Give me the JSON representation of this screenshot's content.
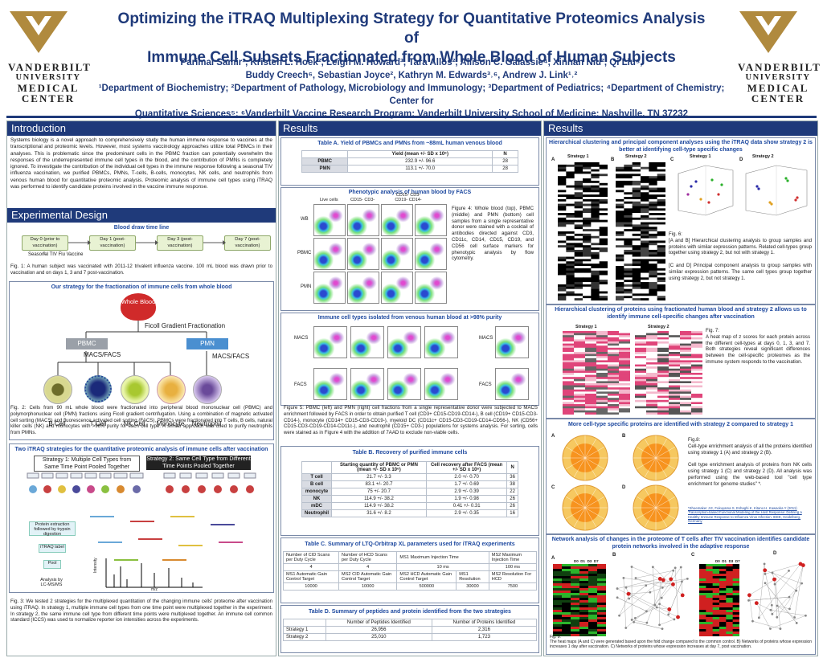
{
  "header": {
    "title_line1": "Optimizing the iTRAQ Multiplexing Strategy for Quantitative Proteomics Analysis of",
    "title_line2": "Immune Cell Subsets Fractionated from Whole Blood of Human Subjects",
    "authors_line1": "Parimal Samir¹, Kristen L. Hoek², Leigh M. Howard³, Tara Allos², Allison C. Galassie⁴, Xinnan Niu², Qi Liu⁵,",
    "authors_line2": "Buddy Creech⁶, Sebastian Joyce², Kathryn M. Edwards³˒⁶, Andrew J. Link¹˒²",
    "affil_line1": "¹Department of Biochemistry; ²Department of Pathology, Microbiology and Immunology; ³Department of Pediatrics; ⁴Department of Chemistry; Center for",
    "affil_line2": "Quantitative Sciences⁵; ⁶Vanderbilt Vaccine Research Program;  Vanderbilt University School of Medicine; Nashville, TN 37232",
    "logo_line1": "VANDERBILT",
    "logo_line2": "UNIVERSITY",
    "logo_line3": "MEDICAL",
    "logo_line4": "CENTER"
  },
  "col1": {
    "intro_head": "Introduction",
    "intro_text": "Systems biology is a novel approach to comprehensively study the human immune response to vaccines at the transcriptional and proteomic levels.  However, most systems vaccinology approaches utilize total PBMCs in their analyses. This is problematic since the predominant cells in the PBMC fraction can potentially overwhelm the responses of the underrepresented immune cell types in the blood, and the contribution of PMNs is completely ignored. To investigate the contribution of the individual cell types in the immune response following a seasonal TIV influenza vaccination, we purified PBMCs, PMNs, T-cells, B-cells, monocytes, NK cells, and neutrophils from venous human blood for quantitative proteomic analysis. Proteomic analysis of immune cell types using iTRAQ was performed to identify candidate proteins involved in the vaccine immune response.",
    "exp_head": "Experimental Design",
    "blood_draw": "Blood draw time line",
    "timeline": [
      "Day 0 (prior to vaccination)",
      "Day 1 (post-vaccination)",
      "Day 3 (post-vaccination)",
      "Day 7 (post-vaccination)"
    ],
    "tiv": "Seasonal TIV Flu Vaccine",
    "fig1": "Fig. 1:  A human subject was vaccinated with 2011-12 trivalent influenza vaccine. 100 mL blood was drawn prior to vaccination and on days 1, 3 and 7 post-vaccination.",
    "strategy_title": "Our strategy for the fractionation of immune cells from whole blood",
    "whole_blood": "Whole Blood",
    "ficoll": "Ficoll Gradient Fractionation",
    "pbmc": "PBMC",
    "pmn": "PMN",
    "macs1": "MACS/FACS",
    "macs2": "MACS/FACS",
    "cells": [
      "B Cell",
      "T Cell",
      "NK Cell",
      "Monocyte",
      "Neutrophil"
    ],
    "fig2": "Fig. 2: Cells from 90 mL whole blood were fractionated into peripheral blood mononuclear cell (PBMC) and polymorphonuclear cell (PMN) fractions using Ficoll gradient centrifugation. Using a combination of magnetic activated cell sorting (MACS) and fluorescence activated cell sorting (FACS), PBMCs were fractionated into T cells, B cells, natural killer cells (NK) and monocytes with >98% purity for each cell type. A similar approach was used to purify neutrophils from PMNs.",
    "itraq_title": "Two iTRAQ strategies for the quantitative proteomic analysis of immune cells after vaccination",
    "strategy1": "Strategy 1: Multiple Cell Types from Same Time Point Pooled Together",
    "strategy2": "Strategy 2: Same Cell Type from Different Time Points Pooled Together",
    "flow_steps": [
      "Protein extraction followed by trypsin digestion",
      "iTRAQ label",
      "Pool",
      "Analysis by LC-MS/MS"
    ],
    "intensity": "Intensity",
    "mz": "m/z",
    "fig3": "Fig. 3: We tested 2 strategies for the multiplexed quantitation of the changing immune cells' proteome after vaccination using iTRAQ. In strategy 1, multiple immune cell types from one time point were multiplexed together in the experiment. In strategy 2, the same immune cell type from different time points were multiplexed together. An immune cell common standard (ICCS) was used to normalize reporter ion intensities across the experiments."
  },
  "col2": {
    "head": "Results",
    "tableA_title": "Table A. Yield of PBMCs and PMNs from ~88mL human venous blood",
    "tableA_cols": [
      "",
      "Yield  (mean +/- SD x 10⁶)",
      "N"
    ],
    "tableA_rows": [
      [
        "PBMC",
        "232.9 +/- 96.6",
        "28"
      ],
      [
        "PMN",
        "113.1 +/- 70.0",
        "28"
      ]
    ],
    "facs_title": "Phenotypic analysis of human blood by FACS",
    "facs_cols": [
      "Live cells",
      "CD15- CD3-",
      "CD15- CD3- CD19- CD14-"
    ],
    "facs_rows": [
      "WB",
      "PBMC",
      "PMN"
    ],
    "fig4": "Figure 4: Whole blood (top), PBMC (middle) and PMN (bottom) cell samples from a single representative donor were stained with a cocktail of antibodies directed against CD3, CD11c, CD14, CD15, CD19, and CD56 cell surface markers for phenotypic analysis by flow cytometry.",
    "iso_title": "Immune cell types isolated from venous human blood at >98% purity",
    "iso_cols": [
      "T cell",
      "B cell",
      "Monocyte",
      "mDC NK",
      "neutrophil"
    ],
    "macs": "MACS",
    "facs": "FACS",
    "fig5": "Figure 5: PBMC (left) and PMN (right) cell fractions from a single representative donor were subjected to MACS enrichment followed by FACS in order to obtain purified T cell (CD3+ CD15-CD19-CD14-), B cell (CD19+ CD15-CD3-CD14-), monocyte (CD14+ CD15-CD3-CD19-), myeloid DC (CD11c+ CD15-CD3-CD19-CD14-CD56-), NK (CD56+ CD15-CD3-CD19-CD14-CD11c-), and neutrophil (CD15+ CD3-) populations for systems analysis. For sorting, cells were stained as in Figure 4 with the addition of 7AAD to exclude  non-viable cells.",
    "tableB_title": "Table B.  Recovery of purified immune cells",
    "tableB_cols": [
      "",
      "Starting quantity of PBMC or PMN (mean +/- SD x 10⁶)",
      "Cell recovery after FACS (mean +/- SD x 10⁶)",
      "N"
    ],
    "tableB_rows": [
      [
        "T cell",
        "21.7 +/- 3.3",
        "2.0 +/- 0.70",
        "36"
      ],
      [
        "B cell",
        "83.1 +/- 20.7",
        "1.7 +/- 0.69",
        "38"
      ],
      [
        "monocyte",
        "75 +/- 20.7",
        "2.9 +/- 0.39",
        "22"
      ],
      [
        "NK",
        "114.9 +/- 38.2",
        "1.9 +/- 0.98",
        "26"
      ],
      [
        "mDC",
        "114.9 +/- 38.2",
        "0.41 +/- 0.31",
        "26"
      ],
      [
        "Neutrophil",
        "31.6 +/- 8.2",
        "2.9 +/- 0.35",
        "16"
      ]
    ],
    "tableC_title": "Table C. Summary of LTQ-Orbitrap XL parameters used for iTRAQ experiments",
    "tableC_r1": [
      "Number of CID Scans per Duty Cycle",
      "Number of HCD Scans per Duty Cycle",
      "MS1 Maximum Injection Time",
      "MS2 Maximum Injection Time"
    ],
    "tableC_v1": [
      "4",
      "4",
      "10 ms",
      "100 ms"
    ],
    "tableC_r2": [
      "MS1 Automatic Gain Control Target",
      "MS2 CID Automatic Gain Control Target",
      "MS2 HCD Automatic Gain Control Target",
      "MS1 Resolution",
      "MS2 Resolution For HCD"
    ],
    "tableC_v2": [
      "10000",
      "10000",
      "500000",
      "30000",
      "7500"
    ],
    "tableD_title": "Table D. Summary of peptides and protein identified from the two strategies",
    "tableD_cols": [
      "",
      "Number of Peptides Identified",
      "Number of Proteins Identified"
    ],
    "tableD_rows": [
      [
        "Strategy 1",
        "26,956",
        "2,316"
      ],
      [
        "Strategy 2",
        "25,010",
        "1,723"
      ]
    ]
  },
  "col3": {
    "head": "Results",
    "hc_title": "Hierarchical clustering and principal component analyses using the iTRAQ  data show strategy 2 is better at identifying cell-type specific changes",
    "hc_labels": [
      "Strategy 1",
      "Strategy 2",
      "Strategy 1",
      "Strategy 2"
    ],
    "hc_letters": [
      "A",
      "B",
      "C",
      "D"
    ],
    "fig6": "Fig. 6:\n[A and B] Hierarchical  clustering analysis to group samples and proteins with similar expression patterns. Related cell-types group together using strategy 2, but not with strategy 1.\n\n[C and D] Principal component analysis to group samples with similar expression patterns. The same cell types group together using strategy 2, but not strategy 1.",
    "hm_title": "Hierarchical clustering of proteins using fractionated human blood and strategy 2 allows us to identify immune cell-specific changes after vaccination",
    "hm_labels": [
      "Strategy 1",
      "Strategy 2"
    ],
    "fig7": "Fig. 7:\nA heat map of z scores for each protein across the different cell-types at days 0, 1, 3, and 7. Both strategies reveal significant differences between the cell-specific proteomes as the immune system responds to the vaccination.",
    "enr_title": "More cell-type specific proteins are identified with strategy 2 compared to strategy 1",
    "enr_letters": [
      "A",
      "B",
      "C",
      "D"
    ],
    "fig8": "Fig.8:\nCell-type enrichment analysis of all the proteins identified using strategy 1 (A) and strategy 2 (B).\n\nCell type enrichment analysis of proteins from NK cells using strategy 1 (C) and strategy 2 (D). All analysis was performed using the web-based tool \"cell type enrichment for genome studies\" *.",
    "ref": "*Shoemaker J.E, Fukuyama S, Eshaghi K, Kitano H, Kawaoka Y (2011) Transcription-based Functional Modeling of the Host Response: Defining a Healthy Immune Response to Influenza Virus Infection. IEEE, Heidelberg, Germany",
    "net_title": "Network analysis of changes in the proteome of T cells after TIV vaccination identifies candidate protein networks involved in the adaptive response",
    "net_letters": [
      "A",
      "B",
      "C",
      "D"
    ],
    "net_days": [
      "D0",
      "D1",
      "D3",
      "D7"
    ],
    "fig9": "Fig. 9:\nThe heat maps (A and C) were generated based upon the fold change compared to the common control. B) Networks of proteins whose expression increases 1 day after vaccination. C) Networks of proteins whose expression increases at day 7, post vaccination."
  },
  "colors": {
    "navy": "#1f3a7a",
    "gold": "#b08a3e",
    "heatmap_red": "#e0457a",
    "heatmap_green": "#2bb52b"
  }
}
